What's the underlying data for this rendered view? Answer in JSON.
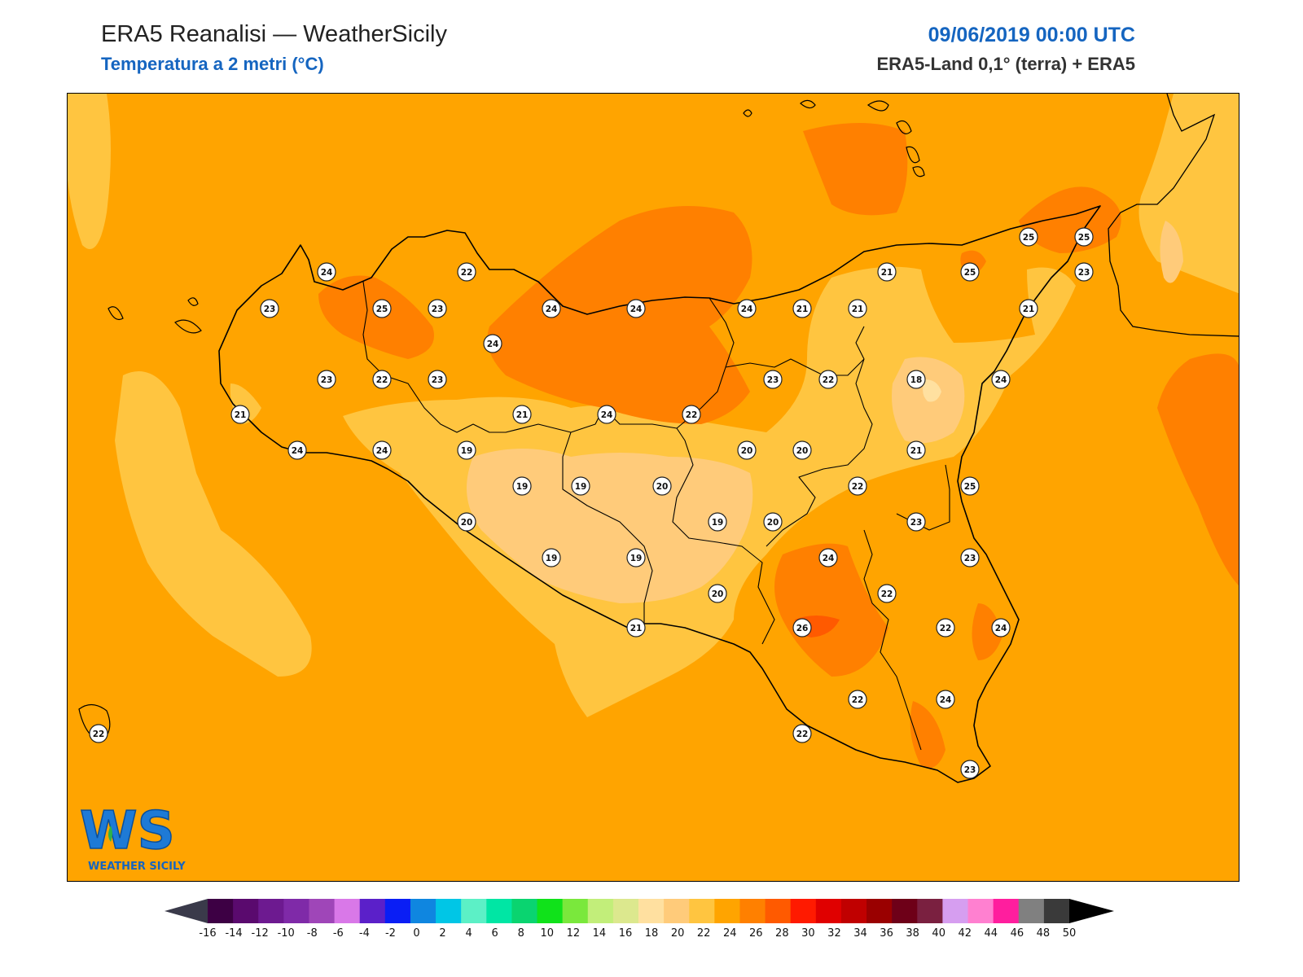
{
  "header": {
    "title": "ERA5 Reanalisi — WeatherSicily",
    "subtitle": "Temperatura a 2 metri (°C)",
    "date": "09/06/2019 00:00 UTC",
    "source": "ERA5-Land 0,1° (terra) + ERA5"
  },
  "logo": {
    "mark": "WS",
    "text": "WEATHER SICILY"
  },
  "colors": {
    "sea_base": "#ffa400",
    "t18_20": "#ffcb7a",
    "t20_22": "#ffc540",
    "t24_26": "#ff8000",
    "t26_28": "#ff5a00"
  },
  "stations": [
    {
      "value": "24"
    },
    {
      "value": "22"
    },
    {
      "value": "23"
    },
    {
      "value": "25"
    },
    {
      "value": "23"
    },
    {
      "value": "24"
    },
    {
      "value": "24"
    },
    {
      "value": "24"
    },
    {
      "value": "23"
    },
    {
      "value": "22"
    },
    {
      "value": "23"
    },
    {
      "value": "21"
    },
    {
      "value": "24"
    },
    {
      "value": "22"
    },
    {
      "value": "19"
    },
    {
      "value": "21"
    },
    {
      "value": "24"
    },
    {
      "value": "24"
    },
    {
      "value": "19"
    },
    {
      "value": "19"
    },
    {
      "value": "20"
    },
    {
      "value": "20"
    },
    {
      "value": "19"
    },
    {
      "value": "20"
    },
    {
      "value": "19"
    },
    {
      "value": "19"
    },
    {
      "value": "21"
    },
    {
      "value": "20"
    },
    {
      "value": "24"
    },
    {
      "value": "21"
    },
    {
      "value": "21"
    },
    {
      "value": "21"
    },
    {
      "value": "25"
    },
    {
      "value": "25"
    },
    {
      "value": "25"
    },
    {
      "value": "23"
    },
    {
      "value": "21"
    },
    {
      "value": "23"
    },
    {
      "value": "22"
    },
    {
      "value": "18"
    },
    {
      "value": "24"
    },
    {
      "value": "20"
    },
    {
      "value": "20"
    },
    {
      "value": "21"
    },
    {
      "value": "22"
    },
    {
      "value": "25"
    },
    {
      "value": "23"
    },
    {
      "value": "23"
    },
    {
      "value": "24"
    },
    {
      "value": "22"
    },
    {
      "value": "26"
    },
    {
      "value": "22"
    },
    {
      "value": "24"
    },
    {
      "value": "22"
    },
    {
      "value": "24"
    },
    {
      "value": "22"
    },
    {
      "value": "23"
    },
    {
      "value": "22"
    }
  ],
  "colorbar": {
    "ticks": [
      "-16",
      "-14",
      "-12",
      "-10",
      "-8",
      "-6",
      "-4",
      "-2",
      "0",
      "2",
      "4",
      "6",
      "8",
      "10",
      "12",
      "14",
      "16",
      "18",
      "20",
      "22",
      "24",
      "26",
      "28",
      "30",
      "32",
      "34",
      "36",
      "38",
      "40",
      "42",
      "44",
      "46",
      "48",
      "50"
    ],
    "colors": [
      "#3d0044",
      "#5a0a6e",
      "#6d1a90",
      "#7f2aa8",
      "#9f46b8",
      "#d978e8",
      "#5b20c9",
      "#0a1ef5",
      "#0f86e0",
      "#00c6e6",
      "#5cf0c6",
      "#00e6a4",
      "#0ad470",
      "#10e21a",
      "#7ae83c",
      "#c2ee7a",
      "#dce88e",
      "#ffe0a0",
      "#ffcb7a",
      "#ffc540",
      "#ffa400",
      "#ff8000",
      "#ff5a00",
      "#ff1a00",
      "#e00000",
      "#c00000",
      "#9a0000",
      "#6e0018",
      "#7a2040",
      "#d69ef0",
      "#ff80d0",
      "#ff1e9e",
      "#808080",
      "#3a3a3a"
    ],
    "under_color": "#3a3a4a",
    "over_color": "#000000"
  }
}
